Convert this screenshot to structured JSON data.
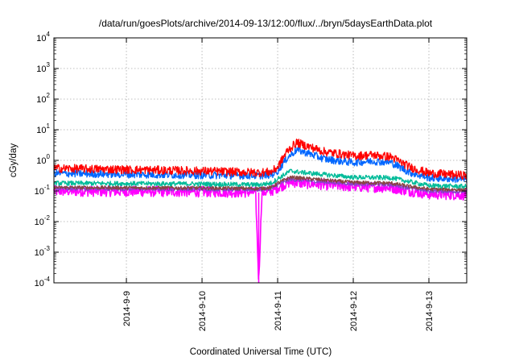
{
  "chart_data": {
    "type": "line",
    "title": "/data/run/goesPlots/archive/2014-09-13/12:00/flux/../bryn/5daysEarthData.plot",
    "xlabel": "Coordinated Universal Time (UTC)",
    "ylabel": "cGy/day",
    "y_scale": "log",
    "ylim": [
      0.0001,
      10000
    ],
    "xlim": [
      "2014-09-08 01:00",
      "2014-09-13 12:00"
    ],
    "y_ticks": [
      {
        "base": "10",
        "exp": "-4"
      },
      {
        "base": "10",
        "exp": "-3"
      },
      {
        "base": "10",
        "exp": "-2"
      },
      {
        "base": "10",
        "exp": "-1"
      },
      {
        "base": "10",
        "exp": "0"
      },
      {
        "base": "10",
        "exp": "1"
      },
      {
        "base": "10",
        "exp": "2"
      },
      {
        "base": "10",
        "exp": "3"
      },
      {
        "base": "10",
        "exp": "4"
      }
    ],
    "x_ticks": [
      "2014-9-9",
      "2014-9-10",
      "2014-9-11",
      "2014-9-12",
      "2014-9-13"
    ],
    "grid": true,
    "legend": "none",
    "noise_amplitude": [
      0.28,
      0.25,
      0.15,
      0.12,
      0.12,
      0.35
    ],
    "series": [
      {
        "color": "#ff0000",
        "points": [
          [
            "2014-09-08 01:00",
            0.55
          ],
          [
            "2014-09-09 00:00",
            0.5
          ],
          [
            "2014-09-10 00:00",
            0.45
          ],
          [
            "2014-09-10 18:00",
            0.4
          ],
          [
            "2014-09-10 22:00",
            0.42
          ],
          [
            "2014-09-11 00:00",
            0.6
          ],
          [
            "2014-09-11 03:00",
            2.0
          ],
          [
            "2014-09-11 06:00",
            3.8
          ],
          [
            "2014-09-11 09:00",
            3.0
          ],
          [
            "2014-09-11 15:00",
            1.9
          ],
          [
            "2014-09-12 00:00",
            1.4
          ],
          [
            "2014-09-12 06:00",
            1.5
          ],
          [
            "2014-09-12 12:00",
            1.3
          ],
          [
            "2014-09-12 18:00",
            0.6
          ],
          [
            "2014-09-13 00:00",
            0.38
          ],
          [
            "2014-09-13 12:00",
            0.32
          ]
        ]
      },
      {
        "color": "#0066ff",
        "points": [
          [
            "2014-09-08 01:00",
            0.38
          ],
          [
            "2014-09-09 00:00",
            0.35
          ],
          [
            "2014-09-10 00:00",
            0.33
          ],
          [
            "2014-09-10 18:00",
            0.32
          ],
          [
            "2014-09-10 22:00",
            0.34
          ],
          [
            "2014-09-11 00:00",
            0.45
          ],
          [
            "2014-09-11 03:00",
            1.2
          ],
          [
            "2014-09-11 06:00",
            2.2
          ],
          [
            "2014-09-11 09:00",
            1.8
          ],
          [
            "2014-09-11 15:00",
            1.1
          ],
          [
            "2014-09-12 00:00",
            0.85
          ],
          [
            "2014-09-12 06:00",
            0.95
          ],
          [
            "2014-09-12 12:00",
            0.85
          ],
          [
            "2014-09-12 18:00",
            0.4
          ],
          [
            "2014-09-13 00:00",
            0.27
          ],
          [
            "2014-09-13 12:00",
            0.24
          ]
        ]
      },
      {
        "color": "#00bb99",
        "points": [
          [
            "2014-09-08 01:00",
            0.18
          ],
          [
            "2014-09-10 00:00",
            0.17
          ],
          [
            "2014-09-10 18:00",
            0.16
          ],
          [
            "2014-09-10 22:00",
            0.18
          ],
          [
            "2014-09-11 00:00",
            0.25
          ],
          [
            "2014-09-11 04:00",
            0.45
          ],
          [
            "2014-09-11 08:00",
            0.4
          ],
          [
            "2014-09-12 00:00",
            0.28
          ],
          [
            "2014-09-12 12:00",
            0.27
          ],
          [
            "2014-09-12 18:00",
            0.2
          ],
          [
            "2014-09-13 00:00",
            0.15
          ],
          [
            "2014-09-13 12:00",
            0.14
          ]
        ]
      },
      {
        "color": "#884444",
        "points": [
          [
            "2014-09-08 01:00",
            0.13
          ],
          [
            "2014-09-10 00:00",
            0.125
          ],
          [
            "2014-09-10 18:00",
            0.12
          ],
          [
            "2014-09-10 22:00",
            0.13
          ],
          [
            "2014-09-11 00:00",
            0.18
          ],
          [
            "2014-09-11 04:00",
            0.28
          ],
          [
            "2014-09-11 08:00",
            0.26
          ],
          [
            "2014-09-12 00:00",
            0.19
          ],
          [
            "2014-09-12 12:00",
            0.18
          ],
          [
            "2014-09-12 18:00",
            0.14
          ],
          [
            "2014-09-13 00:00",
            0.115
          ],
          [
            "2014-09-13 12:00",
            0.11
          ]
        ]
      },
      {
        "color": "#8844cc",
        "points": [
          [
            "2014-09-08 01:00",
            0.12
          ],
          [
            "2014-09-10 00:00",
            0.115
          ],
          [
            "2014-09-10 18:00",
            0.11
          ],
          [
            "2014-09-10 22:00",
            0.12
          ],
          [
            "2014-09-11 00:00",
            0.16
          ],
          [
            "2014-09-11 04:00",
            0.24
          ],
          [
            "2014-09-11 08:00",
            0.22
          ],
          [
            "2014-09-12 00:00",
            0.17
          ],
          [
            "2014-09-12 12:00",
            0.16
          ],
          [
            "2014-09-12 18:00",
            0.125
          ],
          [
            "2014-09-13 00:00",
            0.1
          ],
          [
            "2014-09-13 12:00",
            0.095
          ]
        ]
      },
      {
        "color": "#ff00ff",
        "points": [
          [
            "2014-09-08 01:00",
            0.1
          ],
          [
            "2014-09-10 00:00",
            0.095
          ],
          [
            "2014-09-10 17:00",
            0.09
          ],
          [
            "2014-09-10 18:00",
            0.0001
          ],
          [
            "2014-09-10 19:00",
            0.09
          ],
          [
            "2014-09-10 22:00",
            0.1
          ],
          [
            "2014-09-11 00:00",
            0.13
          ],
          [
            "2014-09-11 04:00",
            0.2
          ],
          [
            "2014-09-11 08:00",
            0.18
          ],
          [
            "2014-09-12 00:00",
            0.14
          ],
          [
            "2014-09-12 12:00",
            0.13
          ],
          [
            "2014-09-12 18:00",
            0.1
          ],
          [
            "2014-09-13 00:00",
            0.08
          ],
          [
            "2014-09-13 12:00",
            0.075
          ]
        ]
      }
    ]
  }
}
